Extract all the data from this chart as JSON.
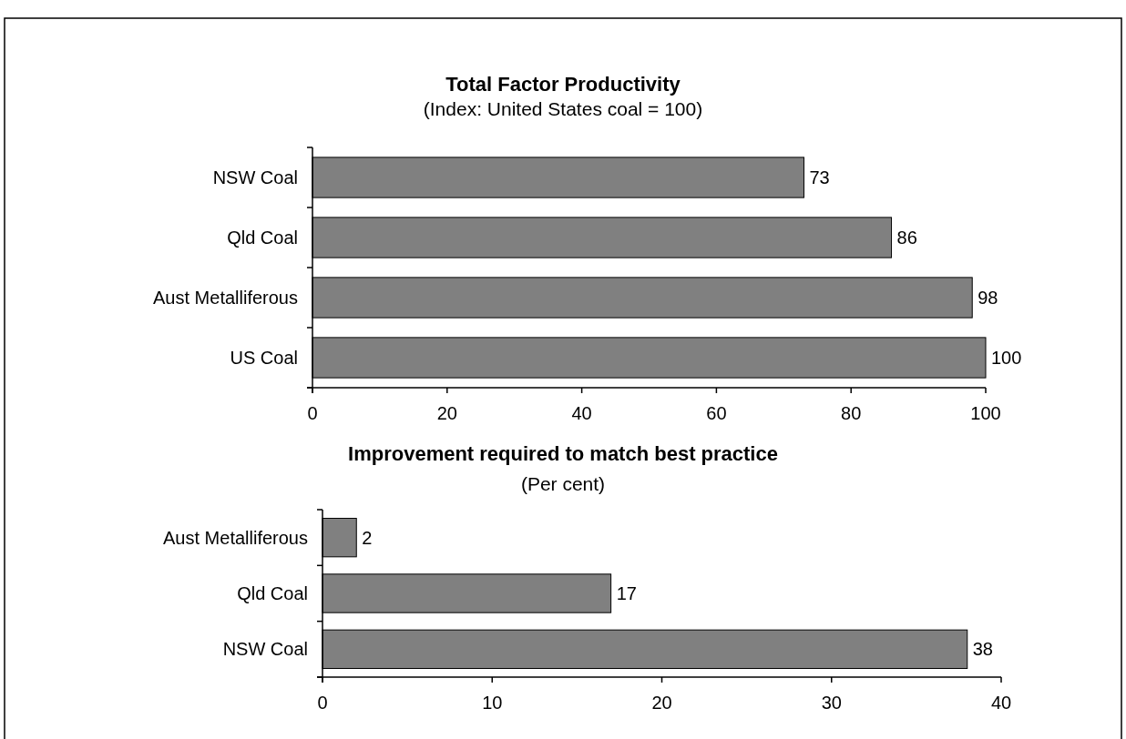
{
  "chart_data": [
    {
      "type": "bar",
      "orientation": "horizontal",
      "title": "Total Factor Productivity",
      "subtitle": "(Index: United States coal = 100)",
      "categories": [
        "NSW Coal",
        "Qld Coal",
        "Aust Metalliferous",
        "US Coal"
      ],
      "values": [
        73,
        86,
        98,
        100
      ],
      "color": "#808080",
      "xlim": [
        0,
        100
      ],
      "xticks": [
        0,
        20,
        40,
        60,
        80,
        100
      ],
      "data_labels": true,
      "grid": false
    },
    {
      "type": "bar",
      "orientation": "horizontal",
      "title": "Improvement required to match best practice",
      "subtitle": "(Per cent)",
      "categories": [
        "Aust Metalliferous",
        "Qld Coal",
        "NSW Coal"
      ],
      "values": [
        2,
        17,
        38
      ],
      "color": "#808080",
      "xlim": [
        0,
        40
      ],
      "xticks": [
        0,
        10,
        20,
        30,
        40
      ],
      "data_labels": true,
      "grid": false
    }
  ]
}
